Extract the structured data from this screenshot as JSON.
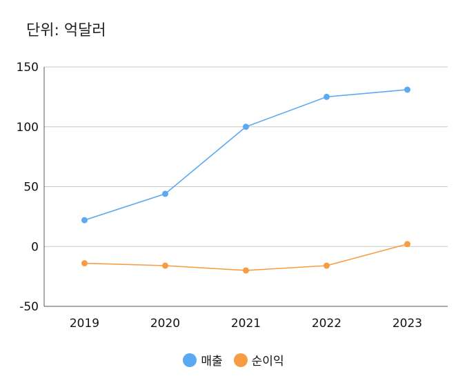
{
  "unit_label": "단위: 억달러",
  "colors": {
    "revenue": "#5ba8f3",
    "net_income": "#f79c42",
    "grid": "#c8c8c8",
    "axis": "#555555"
  },
  "chart_data": {
    "type": "line",
    "title": "",
    "xlabel": "",
    "ylabel": "",
    "categories": [
      "2019",
      "2020",
      "2021",
      "2022",
      "2023"
    ],
    "ylim": [
      -50,
      150
    ],
    "yticks": [
      150,
      100,
      50,
      0,
      -50
    ],
    "grid": true,
    "legend_position": "bottom",
    "series": [
      {
        "name": "매출",
        "values": [
          22,
          44,
          100,
          125,
          131
        ]
      },
      {
        "name": "순이익",
        "values": [
          -14,
          -16,
          -20,
          -16,
          2
        ]
      }
    ]
  }
}
